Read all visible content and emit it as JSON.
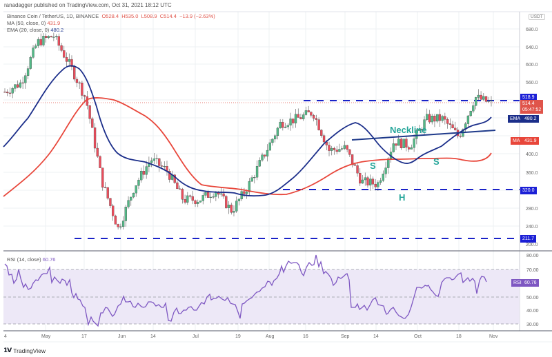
{
  "header": {
    "publisher": "ranadagger published on TradingView.com, Oct 31, 2021 18:12 UTC",
    "symbol": "Binance Coin / TetherUS, 1D, BINANCE",
    "open": "O528.4",
    "high": "H535.0",
    "low": "L508.9",
    "close": "C514.4",
    "change": "−13.9 (−2.63%)",
    "ma_label": "MA (50, close, 0)",
    "ma_value": "431.9",
    "ema_label": "EMA (20, close, 0)",
    "ema_value": "480.2"
  },
  "price_axis": {
    "currency": "USDT",
    "ticks": [
      "680.0",
      "640.0",
      "600.0",
      "560.0",
      "400.0",
      "360.0",
      "280.0",
      "240.0",
      "200.0"
    ],
    "tags": {
      "resistance": "518.9",
      "last_price": "514.4",
      "countdown": "05:47:52",
      "ema_tag": "EMA",
      "ema_value": "480.2",
      "ma_tag": "MA",
      "ma_value": "431.9",
      "support": "320.0",
      "low_support": "211.7"
    }
  },
  "rsi": {
    "label": "RSI (14, close)",
    "value": "60.76",
    "tag": "RSI",
    "ticks": [
      "80.00",
      "70.00",
      "50.00",
      "40.00",
      "30.00"
    ]
  },
  "time_axis": [
    "4",
    "May",
    "17",
    "Jun",
    "14",
    "Jul",
    "19",
    "Aug",
    "16",
    "Sep",
    "14",
    "Oct",
    "18",
    "Nov"
  ],
  "annotations": {
    "neckline": "Neckline",
    "left_shoulder": "S",
    "head": "H",
    "right_shoulder": "S"
  },
  "footer": {
    "brand": "TradingView"
  },
  "colors": {
    "up": "#53b987",
    "down": "#eb4d5c",
    "ema": "#1b2e8a",
    "ma": "#e8463a",
    "dash": "#1a22c8",
    "rsi": "#7e57c2",
    "rsi_band": "#ede8f7",
    "annotation": "#26a69a",
    "last_price_tag": "#e0544a",
    "level_tag": "#1b1fd6"
  },
  "chart_data": {
    "type": "candlestick",
    "title": "Binance Coin / TetherUS, 1D, BINANCE",
    "xlabel": "",
    "ylabel": "USDT",
    "ylim": [
      200,
      700
    ],
    "x_ticks": [
      "4",
      "May",
      "17",
      "Jun",
      "14",
      "Jul",
      "19",
      "Aug",
      "16",
      "Sep",
      "14",
      "Oct",
      "18",
      "Nov"
    ],
    "last": {
      "open": 528.4,
      "high": 535.0,
      "low": 508.9,
      "close": 514.4,
      "change": -13.9,
      "change_pct": -2.63
    },
    "indicators": {
      "MA50": 431.9,
      "EMA20": 480.2,
      "RSI14": 60.76
    },
    "horizontal_levels": [
      518.9,
      320.0,
      211.7
    ],
    "pattern": "Inverse head and shoulders (S-H-S) with Neckline",
    "approx_close_path": [
      {
        "date": "Apr 24",
        "close": 540
      },
      {
        "date": "May 1",
        "close": 560
      },
      {
        "date": "May 7",
        "close": 650
      },
      {
        "date": "May 10",
        "close": 665
      },
      {
        "date": "May 12",
        "close": 600
      },
      {
        "date": "May 17",
        "close": 525
      },
      {
        "date": "May 19",
        "close": 340
      },
      {
        "date": "May 23",
        "close": 235
      },
      {
        "date": "May 28",
        "close": 330
      },
      {
        "date": "Jun 5",
        "close": 390
      },
      {
        "date": "Jun 14",
        "close": 365
      },
      {
        "date": "Jun 21",
        "close": 300
      },
      {
        "date": "Jul 1",
        "close": 300
      },
      {
        "date": "Jul 10",
        "close": 320
      },
      {
        "date": "Jul 20",
        "close": 275
      },
      {
        "date": "Aug 1",
        "close": 330
      },
      {
        "date": "Aug 10",
        "close": 400
      },
      {
        "date": "Aug 16",
        "close": 470
      },
      {
        "date": "Aug 28",
        "close": 480
      },
      {
        "date": "Sep 5",
        "close": 495
      },
      {
        "date": "Sep 7",
        "close": 410
      },
      {
        "date": "Sep 15",
        "close": 415
      },
      {
        "date": "Sep 21",
        "close": 340
      },
      {
        "date": "Sep 28",
        "close": 335
      },
      {
        "date": "Oct 5",
        "close": 430
      },
      {
        "date": "Oct 12",
        "close": 420
      },
      {
        "date": "Oct 18",
        "close": 480
      },
      {
        "date": "Oct 24",
        "close": 480
      },
      {
        "date": "Oct 27",
        "close": 440
      },
      {
        "date": "Oct 29",
        "close": 528
      },
      {
        "date": "Oct 31",
        "close": 514.4
      }
    ],
    "rsi_ylim": [
      25,
      85
    ],
    "rsi_levels": [
      70,
      50,
      30
    ]
  }
}
